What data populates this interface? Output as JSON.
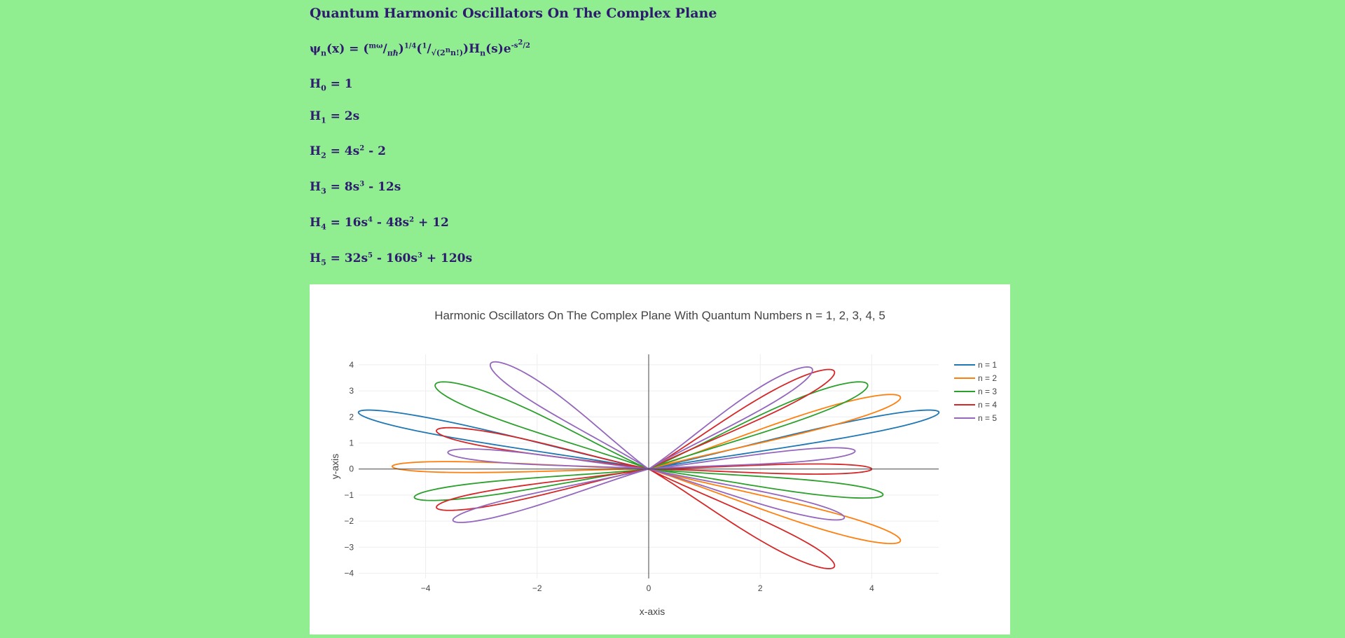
{
  "page": {
    "heading": "Quantum Harmonic Oscillators On The Complex Plane",
    "wave_function": {
      "psi": "ψ",
      "psi_sub": "n",
      "lhs": "(x) = (",
      "mw": "mω",
      "slash1": "/",
      "pih": "πℏ",
      "close1": ")",
      "exp14": "1/4",
      "open2": "(",
      "one": "1",
      "slash2": "/",
      "sqrt": "√(2",
      "sqrt_sup": "n",
      "sqrt_end": "n!)",
      "close2": ")",
      "H": "H",
      "H_sub": "n",
      "s_part": "(s)e",
      "exp_s": "-s",
      "exp_s_sup": "2",
      "exp_tail": "/2"
    },
    "polynomials": [
      {
        "sub": "0",
        "parts": [
          {
            "t": " = 1"
          }
        ]
      },
      {
        "sub": "1",
        "parts": [
          {
            "t": " = 2s"
          }
        ]
      },
      {
        "sub": "2",
        "parts": [
          {
            "t": " = 4s"
          },
          {
            "sup": "2"
          },
          {
            "t": " - 2"
          }
        ]
      },
      {
        "sub": "3",
        "parts": [
          {
            "t": " = 8s"
          },
          {
            "sup": "3"
          },
          {
            "t": " - 12s"
          }
        ]
      },
      {
        "sub": "4",
        "parts": [
          {
            "t": " = 16s"
          },
          {
            "sup": "4"
          },
          {
            "t": " - 48s"
          },
          {
            "sup": "2"
          },
          {
            "t": " + 12"
          }
        ]
      },
      {
        "sub": "5",
        "parts": [
          {
            "t": " = 32s"
          },
          {
            "sup": "5"
          },
          {
            "t": " - 160s"
          },
          {
            "sup": "3"
          },
          {
            "t": " + 120s"
          }
        ]
      }
    ]
  },
  "chart_data": {
    "type": "line",
    "title": "Harmonic Oscillators On The Complex Plane With Quantum Numbers n = 1, 2, 3, 4, 5",
    "xlabel": "x-axis",
    "ylabel": "y-axis",
    "xlim": [
      -5.2,
      5.2
    ],
    "ylim": [
      -4.2,
      4.4
    ],
    "x_ticks": [
      "−4",
      "−2",
      "0",
      "2",
      "4"
    ],
    "x_tick_values": [
      -4,
      -2,
      0,
      2,
      4
    ],
    "y_ticks": [
      "4",
      "3",
      "2",
      "1",
      "0",
      "−1",
      "−2",
      "−3",
      "−4"
    ],
    "y_tick_values": [
      4,
      3,
      2,
      1,
      0,
      -1,
      -2,
      -3,
      -4
    ],
    "grid": true,
    "legend_position": "top-right",
    "series": [
      {
        "name": "n = 1",
        "color": "#1f77b4",
        "lobes": [
          {
            "tip": [
              -5.2,
              2.2
            ],
            "angle": 157,
            "width": 0.42
          },
          {
            "tip": [
              5.2,
              2.2
            ],
            "angle": 23,
            "width": 0.42
          }
        ]
      },
      {
        "name": "n = 2",
        "color": "#ff7f0e",
        "lobes": [
          {
            "tip": [
              -4.6,
              0.1
            ],
            "angle": 179,
            "width": 0.32
          },
          {
            "tip": [
              4.5,
              2.8
            ],
            "angle": 32,
            "width": 0.5
          },
          {
            "tip": [
              4.5,
              -2.8
            ],
            "angle": -32,
            "width": 0.5
          }
        ]
      },
      {
        "name": "n = 3",
        "color": "#2ca02c",
        "lobes": [
          {
            "tip": [
              -3.8,
              3.3
            ],
            "angle": 139,
            "width": 0.52
          },
          {
            "tip": [
              -4.2,
              -1.1
            ],
            "angle": -165,
            "width": 0.4
          },
          {
            "tip": [
              3.9,
              3.3
            ],
            "angle": 40,
            "width": 0.52
          },
          {
            "tip": [
              4.2,
              -1.0
            ],
            "angle": -14,
            "width": 0.4
          }
        ]
      },
      {
        "name": "n = 4",
        "color": "#d62728",
        "lobes": [
          {
            "tip": [
              -3.8,
              1.5
            ],
            "angle": 158,
            "width": 0.42
          },
          {
            "tip": [
              -3.8,
              -1.5
            ],
            "angle": -158,
            "width": 0.42
          },
          {
            "tip": [
              3.3,
              3.8
            ],
            "angle": 49,
            "width": 0.45
          },
          {
            "tip": [
              3.3,
              -3.8
            ],
            "angle": -49,
            "width": 0.45
          },
          {
            "tip": [
              4.0,
              0.0
            ],
            "angle": 0,
            "width": 0.3
          }
        ]
      },
      {
        "name": "n = 5",
        "color": "#9467bd",
        "lobes": [
          {
            "tip": [
              -2.8,
              4.1
            ],
            "angle": 124,
            "width": 0.42
          },
          {
            "tip": [
              -3.6,
              0.65
            ],
            "angle": 170,
            "width": 0.35
          },
          {
            "tip": [
              -3.5,
              -2.0
            ],
            "angle": -150,
            "width": 0.38
          },
          {
            "tip": [
              2.9,
              3.9
            ],
            "angle": 53,
            "width": 0.42
          },
          {
            "tip": [
              3.7,
              0.7
            ],
            "angle": 10,
            "width": 0.35
          },
          {
            "tip": [
              3.5,
              -1.9
            ],
            "angle": -28,
            "width": 0.38
          }
        ]
      }
    ]
  }
}
